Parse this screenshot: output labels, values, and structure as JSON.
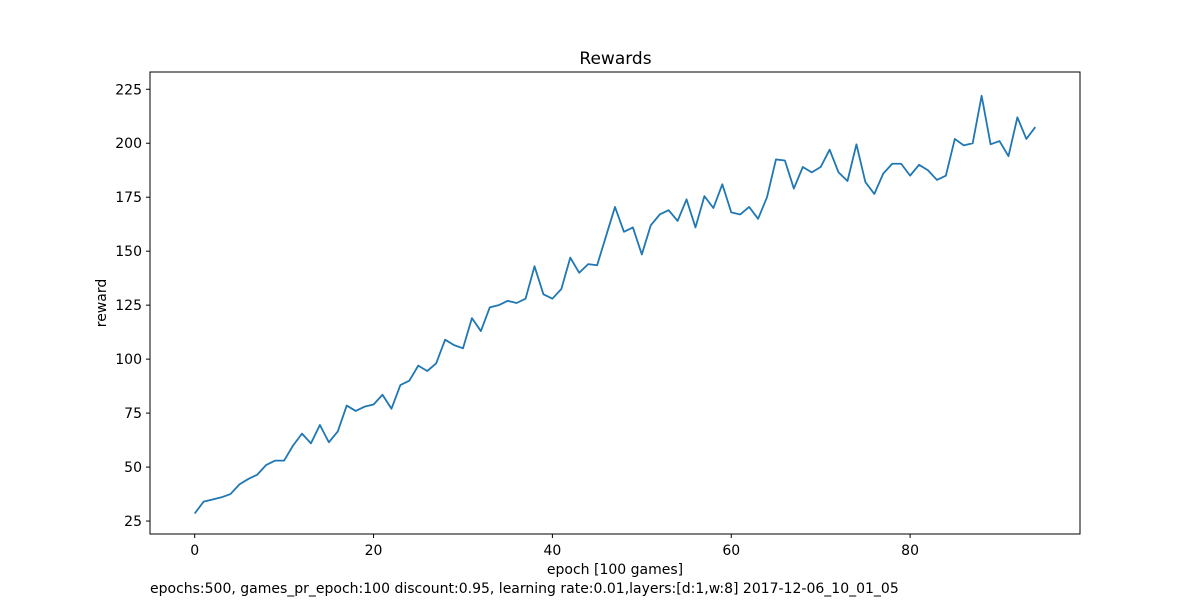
{
  "chart_data": {
    "type": "line",
    "title": "Rewards",
    "xlabel": "epoch [100 games]",
    "ylabel": "reward",
    "xlim": [
      -5,
      99
    ],
    "ylim": [
      19,
      233
    ],
    "xticks": [
      0,
      20,
      40,
      60,
      80
    ],
    "yticks": [
      25,
      50,
      75,
      100,
      125,
      150,
      175,
      200,
      225
    ],
    "grid": false,
    "legend": "none",
    "line_color": "#1f77b4",
    "series": [
      {
        "x": [
          0,
          1,
          2,
          3,
          4,
          5,
          6,
          7,
          8,
          9,
          10,
          11,
          12,
          13,
          14,
          15,
          16,
          17,
          18,
          19,
          20,
          21,
          22,
          23,
          24,
          25,
          26,
          27,
          28,
          29,
          30,
          31,
          32,
          33,
          34,
          35,
          36,
          37,
          38,
          39,
          40,
          41,
          42,
          43,
          44,
          45,
          46,
          47,
          48,
          49,
          50,
          51,
          52,
          53,
          54,
          55,
          56,
          57,
          58,
          59,
          60,
          61,
          62,
          63,
          64,
          65,
          66,
          67,
          68,
          69,
          70,
          71,
          72,
          73,
          74,
          75,
          76,
          77,
          78,
          79,
          80,
          81,
          82,
          83,
          84,
          85,
          86,
          87,
          88,
          89,
          90,
          91,
          92,
          93,
          94
        ],
        "values": [
          28.5,
          34,
          35,
          36,
          37.5,
          42,
          44.5,
          46.5,
          51,
          53,
          53,
          60,
          65.5,
          61,
          69.5,
          61.5,
          66.5,
          78.5,
          76,
          78,
          79,
          83.5,
          77,
          88,
          90,
          97,
          94.5,
          98,
          109,
          106.5,
          105,
          119,
          113,
          124,
          125,
          127,
          126,
          128,
          143,
          130,
          128,
          132.5,
          147,
          140,
          144,
          143.5,
          157,
          170.5,
          159,
          161,
          148.5,
          162,
          167,
          169,
          164,
          174,
          161,
          175.5,
          170,
          181,
          168,
          167,
          170.5,
          165,
          175,
          192.5,
          192,
          179,
          189,
          186.5,
          189,
          197,
          186.5,
          182.5,
          199.5,
          182,
          176.5,
          186,
          190.5,
          190.5,
          185,
          190,
          187.5,
          183,
          185,
          202,
          199,
          200,
          222,
          199.5,
          201,
          194,
          212,
          202,
          207.5
        ]
      }
    ],
    "caption": "epochs:500, games_pr_epoch:100 discount:0.95, learning rate:0.01,layers:[d:1,w:8] 2017-12-06_10_01_05"
  }
}
